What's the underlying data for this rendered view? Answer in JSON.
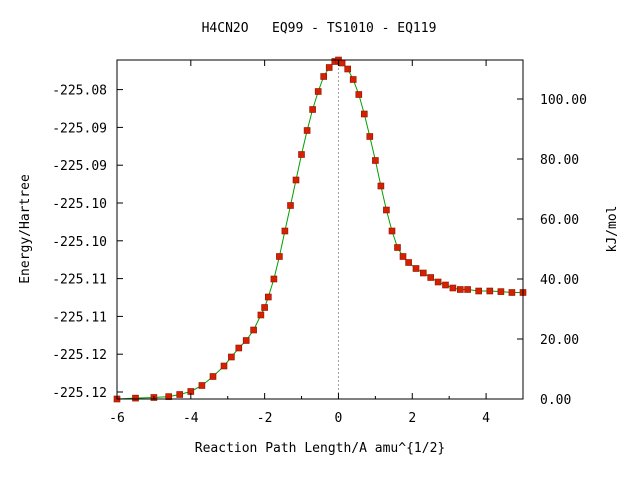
{
  "chart_data": {
    "type": "line",
    "title": "H4CN2O   EQ99 - TS1010 - EQ119",
    "xlabel": "Reaction Path Length/A amu^{1/2}",
    "ylabel_left": "Energy/Hartree",
    "ylabel_right": "kJ/mol",
    "xlim": [
      -6,
      5
    ],
    "ylim_right_kjmol": [
      0,
      113
    ],
    "x_ticks": [
      "-6",
      "-4",
      "-2",
      "0",
      "2",
      "4"
    ],
    "y_ticks_left": [
      "-225.08",
      "-225.09",
      "-225.09",
      "-225.10",
      "-225.10",
      "-225.11",
      "-225.11",
      "-225.12",
      "-225.12"
    ],
    "y_ticks_right": [
      "100.00",
      "80.00",
      "60.00",
      "40.00",
      "20.00",
      "0.00"
    ],
    "grid": false,
    "reference_line_x": 0,
    "series": [
      {
        "x": [
          -6.0,
          -5.5,
          -5.0,
          -4.6,
          -4.3,
          -4.0,
          -3.7,
          -3.4,
          -3.1,
          -2.9,
          -2.7,
          -2.5,
          -2.3,
          -2.1,
          -2.0,
          -1.9,
          -1.75,
          -1.6,
          -1.45,
          -1.3,
          -1.15,
          -1.0,
          -0.85,
          -0.7,
          -0.55,
          -0.4,
          -0.25,
          -0.1,
          0.0,
          0.1,
          0.25,
          0.4,
          0.55,
          0.7,
          0.85,
          1.0,
          1.15,
          1.3,
          1.45,
          1.6,
          1.75,
          1.9,
          2.1,
          2.3,
          2.5,
          2.7,
          2.9,
          3.1,
          3.3,
          3.5,
          3.8,
          4.1,
          4.4,
          4.7,
          5.0
        ],
        "y": [
          0.0,
          0.3,
          0.5,
          0.8,
          1.5,
          2.5,
          4.5,
          7.5,
          11,
          14,
          17,
          19.5,
          23,
          28,
          30.5,
          34,
          40,
          47.5,
          56,
          64.5,
          73,
          81.5,
          89.5,
          96.5,
          102.5,
          107.5,
          110.5,
          112.5,
          113,
          112,
          110,
          106.5,
          101.5,
          95,
          87.5,
          79.5,
          71,
          63,
          56,
          50.5,
          47.5,
          45.5,
          43.5,
          42,
          40.5,
          39,
          38,
          37,
          36.5,
          36.5,
          36,
          36,
          35.8,
          35.5,
          35.5
        ]
      }
    ],
    "colors": {
      "marker": "#d62000",
      "marker_edge": "#8a1500",
      "line": "#00a000",
      "reference": "#a0a0a0"
    }
  }
}
